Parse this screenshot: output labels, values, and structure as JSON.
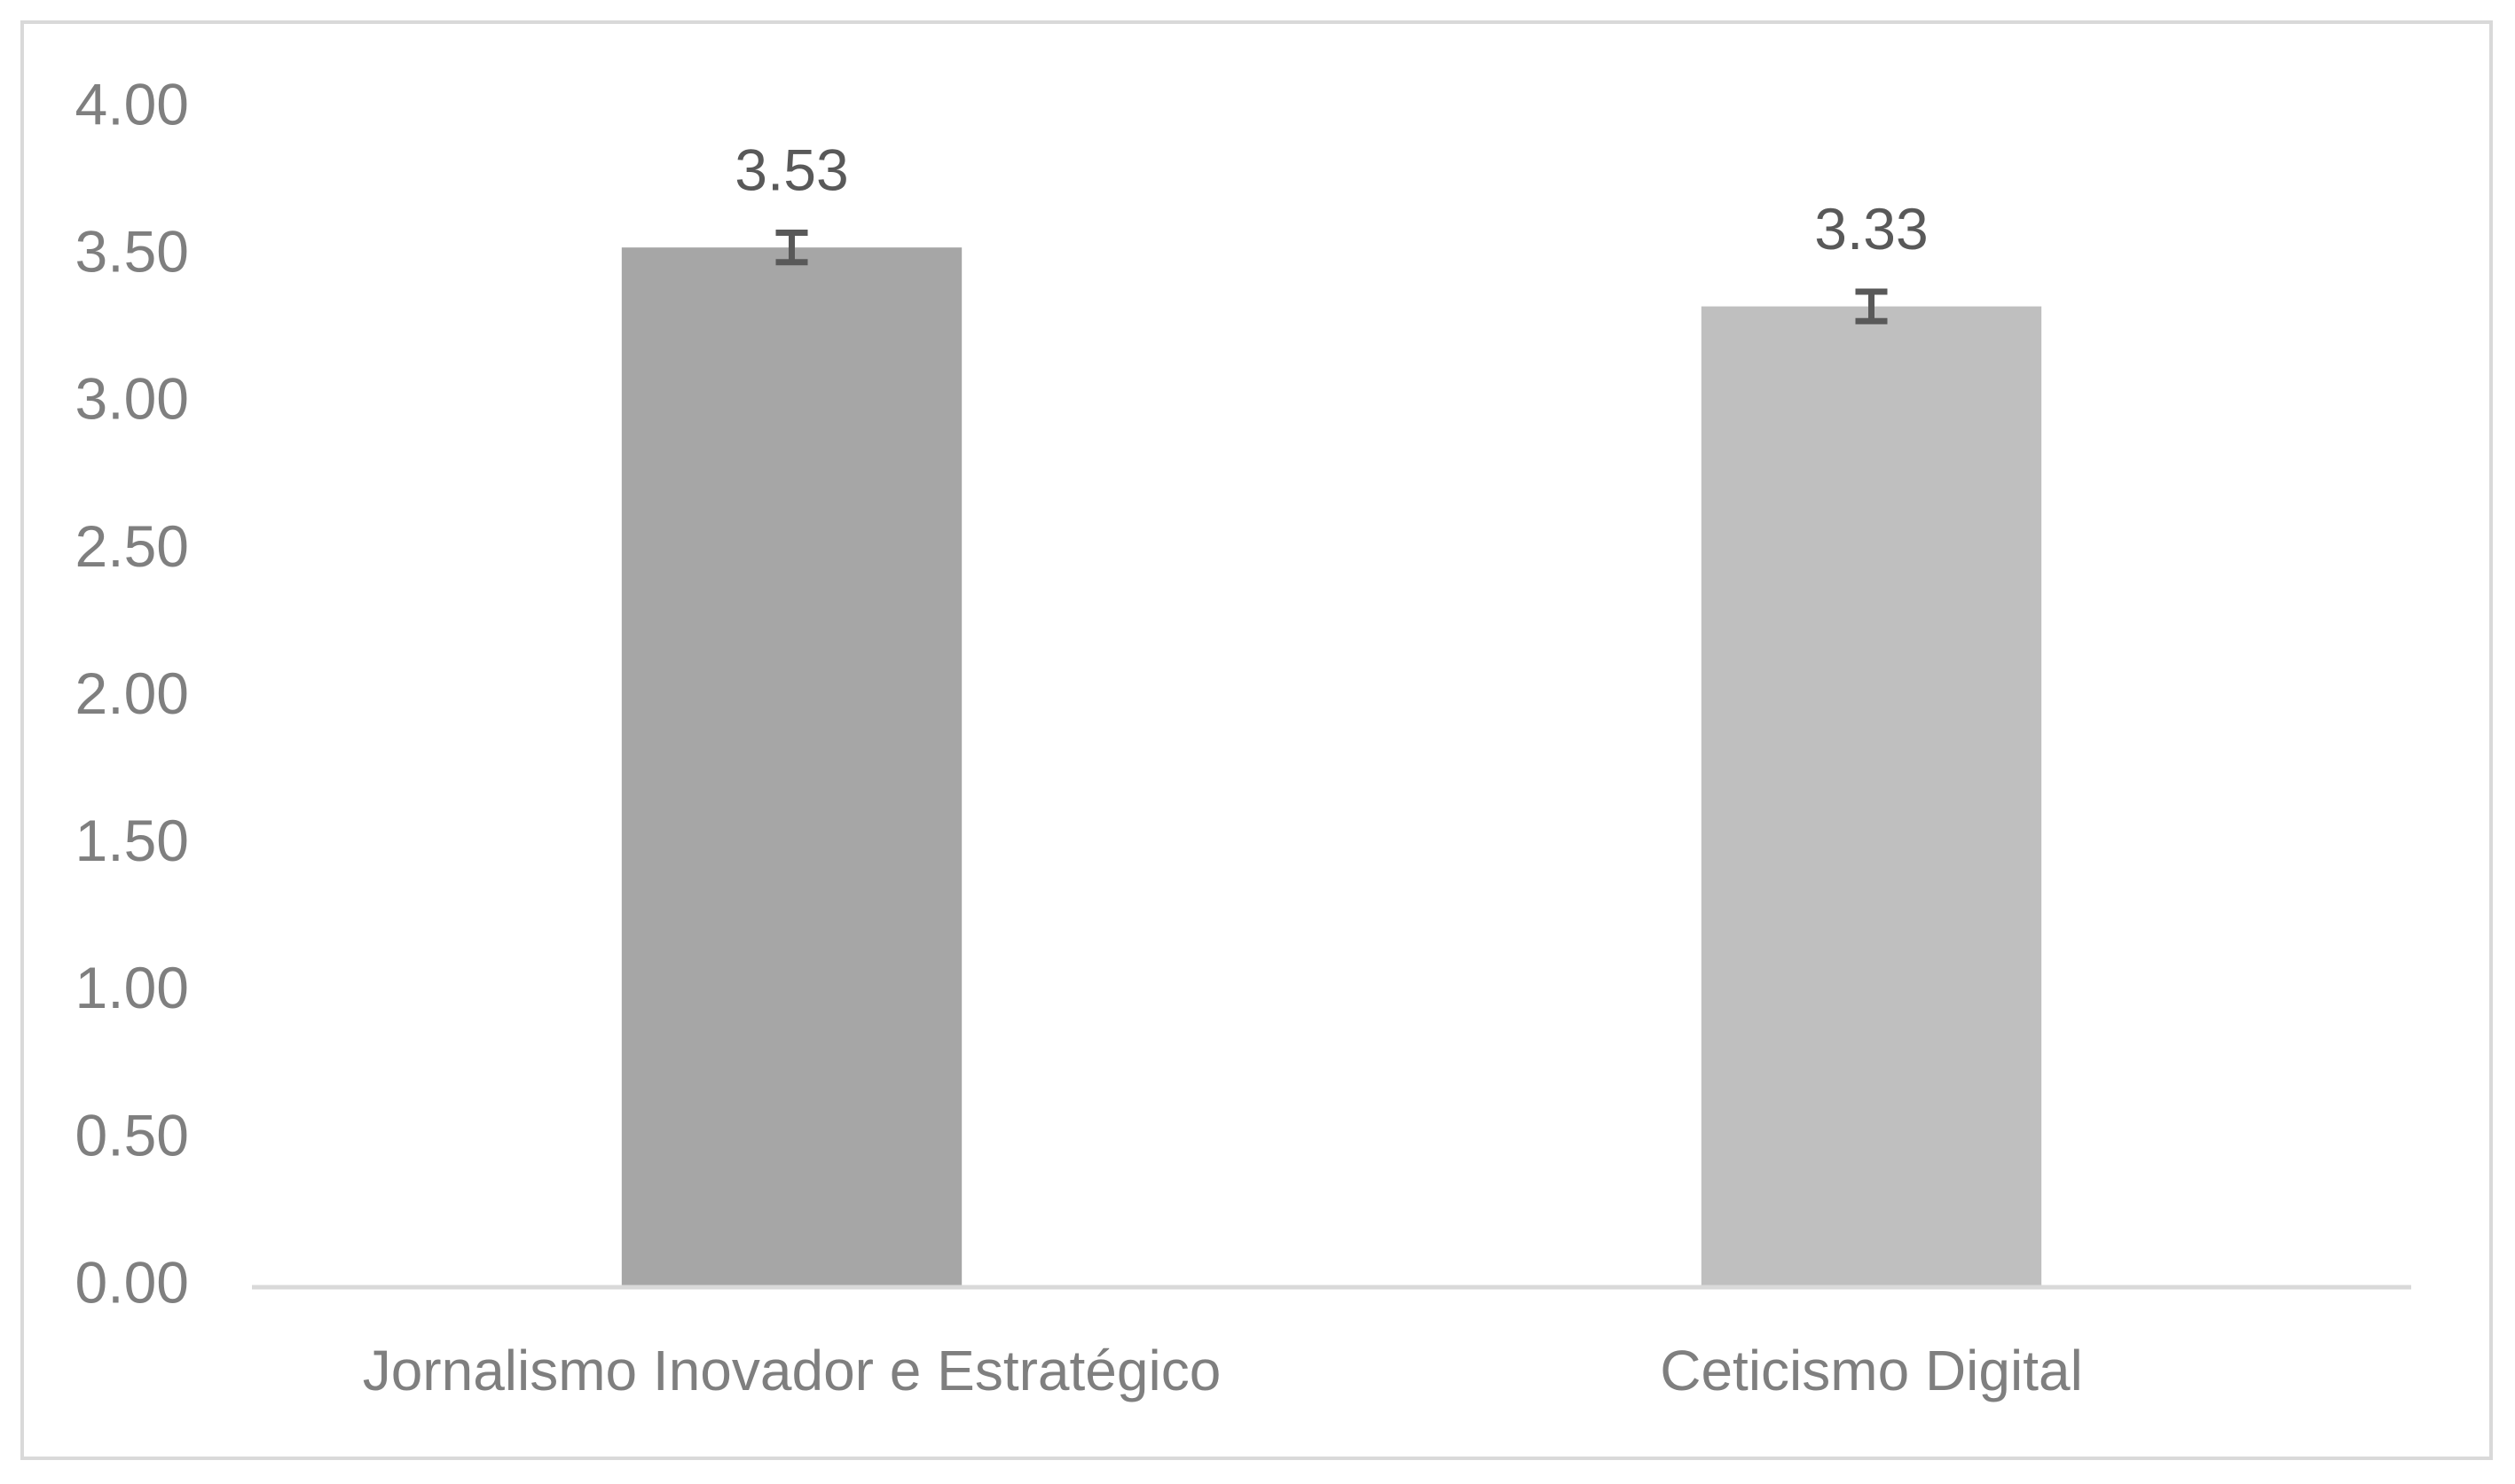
{
  "chart_data": {
    "type": "bar",
    "categories": [
      "Jornalismo Inovador e Estratégico",
      "Ceticismo Digital"
    ],
    "values": [
      3.53,
      3.33
    ],
    "errors": [
      0.05,
      0.05
    ],
    "colors": [
      "#a6a6a6",
      "#bfbfbf"
    ],
    "ylim": [
      0,
      4
    ],
    "yticks": [
      {
        "value": 0,
        "label": "0.00"
      },
      {
        "value": 0.5,
        "label": "0.50"
      },
      {
        "value": 1,
        "label": "1.00"
      },
      {
        "value": 1.5,
        "label": "1.50"
      },
      {
        "value": 2,
        "label": "2.00"
      },
      {
        "value": 2.5,
        "label": "2.50"
      },
      {
        "value": 3,
        "label": "3.00"
      },
      {
        "value": 3.5,
        "label": "3.50"
      },
      {
        "value": 4,
        "label": "4.00"
      }
    ],
    "grid": false
  }
}
